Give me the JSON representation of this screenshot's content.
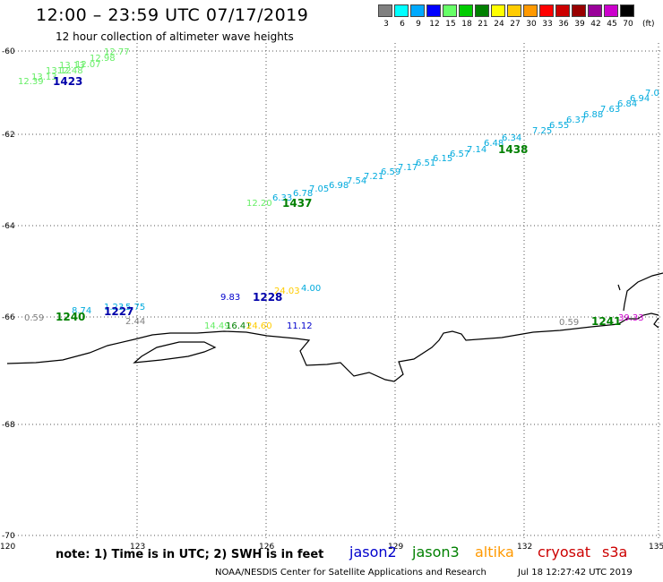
{
  "header": {
    "title": "12:00 – 23:59 UTC 07/17/2019",
    "subtitle": "12 hour collection of altimeter wave heights"
  },
  "legend": {
    "unit": "(ft)",
    "bins": [
      {
        "label": "3",
        "color": "#808080"
      },
      {
        "label": "6",
        "color": "#00ffff"
      },
      {
        "label": "9",
        "color": "#00aaff"
      },
      {
        "label": "12",
        "color": "#0000ff"
      },
      {
        "label": "15",
        "color": "#66ff66"
      },
      {
        "label": "18",
        "color": "#00cc00"
      },
      {
        "label": "21",
        "color": "#008000"
      },
      {
        "label": "24",
        "color": "#ffff00"
      },
      {
        "label": "27",
        "color": "#ffcc00"
      },
      {
        "label": "30",
        "color": "#ff9900"
      },
      {
        "label": "33",
        "color": "#ff0000"
      },
      {
        "label": "36",
        "color": "#cc0000"
      },
      {
        "label": "39",
        "color": "#990000"
      },
      {
        "label": "42",
        "color": "#990099"
      },
      {
        "label": "45",
        "color": "#cc00cc"
      },
      {
        "label": "70",
        "color": "#000000"
      }
    ]
  },
  "axes": {
    "lat_labels": [
      "-60",
      "-62",
      "-64",
      "-66",
      "-68",
      "-70"
    ],
    "lon_labels": [
      "120",
      "123",
      "126",
      "129",
      "132",
      "135"
    ]
  },
  "swh_labels": [
    {
      "text": "12.39",
      "color": "#66ee66"
    },
    {
      "text": "13.13",
      "color": "#66ee66"
    },
    {
      "text": "13.12",
      "color": "#66ee66"
    },
    {
      "text": "13.13",
      "color": "#66ee66"
    },
    {
      "text": "12.48",
      "color": "#66ee66"
    },
    {
      "text": "12.07",
      "color": "#66ee66"
    },
    {
      "text": "12.98",
      "color": "#66ee66"
    },
    {
      "text": "12.77",
      "color": "#66ee66"
    },
    {
      "text": "12.20",
      "color": "#66ee66"
    },
    {
      "text": "6.33",
      "color": "#00aadd"
    },
    {
      "text": "6.78",
      "color": "#00aadd"
    },
    {
      "text": "7.05",
      "color": "#00aadd"
    },
    {
      "text": "6.98",
      "color": "#00aadd"
    },
    {
      "text": "7.54",
      "color": "#00aadd"
    },
    {
      "text": "7.21",
      "color": "#00aadd"
    },
    {
      "text": "6.59",
      "color": "#00aadd"
    },
    {
      "text": "7.17",
      "color": "#00aadd"
    },
    {
      "text": "6.51",
      "color": "#00aadd"
    },
    {
      "text": "6.15",
      "color": "#00aadd"
    },
    {
      "text": "6.57",
      "color": "#00aadd"
    },
    {
      "text": "7.14",
      "color": "#00aadd"
    },
    {
      "text": "6.48",
      "color": "#00aadd"
    },
    {
      "text": "6.34",
      "color": "#00aadd"
    },
    {
      "text": "7.25",
      "color": "#00aadd"
    },
    {
      "text": "6.55",
      "color": "#00aadd"
    },
    {
      "text": "6.37",
      "color": "#00aadd"
    },
    {
      "text": "6.88",
      "color": "#00aadd"
    },
    {
      "text": "7.63",
      "color": "#00aadd"
    },
    {
      "text": "6.84",
      "color": "#00aadd"
    },
    {
      "text": "6.94",
      "color": "#00aadd"
    },
    {
      "text": "7.0",
      "color": "#00aadd"
    },
    {
      "text": "0.59",
      "color": "#808080"
    },
    {
      "text": "8.74",
      "color": "#00aadd"
    },
    {
      "text": "1.23",
      "color": "#00aadd"
    },
    {
      "text": "5.75",
      "color": "#00aadd"
    },
    {
      "text": "2.44",
      "color": "#808080"
    },
    {
      "text": "9.83",
      "color": "#0000cc"
    },
    {
      "text": "24.03",
      "color": "#ffcc00"
    },
    {
      "text": "4.00",
      "color": "#00aadd"
    },
    {
      "text": "14.49",
      "color": "#66ee66"
    },
    {
      "text": "16.41",
      "color": "#008000"
    },
    {
      "text": "24.60",
      "color": "#ffcc00"
    },
    {
      "text": "11.12",
      "color": "#0000cc"
    },
    {
      "text": "0.59",
      "color": "#808080"
    },
    {
      "text": "39.33",
      "color": "#cc00cc"
    }
  ],
  "pass_labels": [
    {
      "text": "1423",
      "color": "#0000aa"
    },
    {
      "text": "1438",
      "color": "#008000"
    },
    {
      "text": "1437",
      "color": "#008000"
    },
    {
      "text": "1228",
      "color": "#0000aa"
    },
    {
      "text": "1227",
      "color": "#0000aa"
    },
    {
      "text": "1240",
      "color": "#008000"
    },
    {
      "text": "1241",
      "color": "#008000"
    }
  ],
  "footer": {
    "note": "note: 1) Time is in UTC; 2) SWH is in feet",
    "satellites": [
      {
        "name": "jason2",
        "color": "#0000cc"
      },
      {
        "name": "jason3",
        "color": "#008000"
      },
      {
        "name": "altika",
        "color": "#ff9900"
      },
      {
        "name": "cryosat",
        "color": "#cc0000"
      },
      {
        "name": "s3a",
        "color": "#cc0000"
      }
    ],
    "credit": "NOAA/NESDIS Center for Satellite Applications and Research",
    "timestamp": "Jul 18 12:27:42 UTC 2019"
  }
}
